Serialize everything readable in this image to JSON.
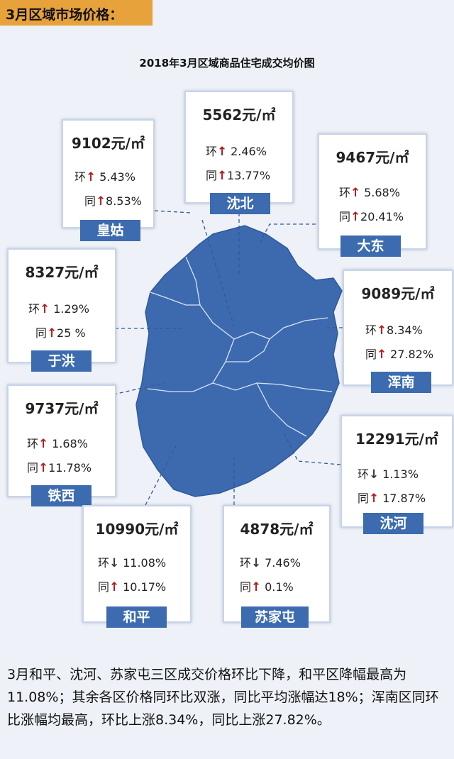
{
  "header": "3月区域市场价格：",
  "chart_title": "2018年3月区域商品住宅成交均价图",
  "districts": [
    {
      "name": "皇姑",
      "price": "9102元/㎡",
      "mom_label": "环",
      "mom_dir": "up",
      "mom": "5.43%",
      "yoy_label": "同",
      "yoy_dir": "up",
      "yoy": "8.53%"
    },
    {
      "name": "沈北",
      "price": "5562元/㎡",
      "mom_label": "环",
      "mom_dir": "up",
      "mom": "2.46%",
      "yoy_label": "同",
      "yoy_dir": "up",
      "yoy": "13.77%"
    },
    {
      "name": "大东",
      "price": "9467元/㎡",
      "mom_label": "环",
      "mom_dir": "up",
      "mom": "5.68%",
      "yoy_label": "同",
      "yoy_dir": "up",
      "yoy": "20.41%"
    },
    {
      "name": "于洪",
      "price": "8327元/㎡",
      "mom_label": "环",
      "mom_dir": "up",
      "mom": "1.29%",
      "yoy_label": "同",
      "yoy_dir": "up",
      "yoy": "25 %"
    },
    {
      "name": "浑南",
      "price": "9089元/㎡",
      "mom_label": "环",
      "mom_dir": "up",
      "mom": "8.34%",
      "yoy_label": "同",
      "yoy_dir": "up",
      "yoy": "27.82%"
    },
    {
      "name": "铁西",
      "price": "9737元/㎡",
      "mom_label": "环",
      "mom_dir": "up",
      "mom": "1.68%",
      "yoy_label": "同",
      "yoy_dir": "up",
      "yoy": "11.78%"
    },
    {
      "name": "沈河",
      "price": "12291元/㎡",
      "mom_label": "环",
      "mom_dir": "down",
      "mom": "1.13%",
      "yoy_label": "同",
      "yoy_dir": "up",
      "yoy": "17.87%"
    },
    {
      "name": "和平",
      "price": "10990元/㎡",
      "mom_label": "环",
      "mom_dir": "down",
      "mom": "11.08%",
      "yoy_label": "同",
      "yoy_dir": "up",
      "yoy": "10.17%"
    },
    {
      "name": "苏家屯",
      "price": "4878元/㎡",
      "mom_label": "环",
      "mom_dir": "down",
      "mom": "7.46%",
      "yoy_label": "同",
      "yoy_dir": "up",
      "yoy": "0.1%"
    }
  ],
  "colors": {
    "map_fill": "#3d6aaf",
    "tag_bg": "#3c6bb0",
    "up_arrow": "#b41a1a",
    "down_arrow": "#2f3b4a",
    "header_bg": "#e7a23b"
  },
  "summary": "3月和平、沈河、苏家屯三区成交价格环比下降，和平区降幅最高为11.08%；其余各区价格同环比双涨，同比平均涨幅达18%；浑南区同环比涨幅均最高，环比上涨8.34%，同比上涨27.82%。"
}
